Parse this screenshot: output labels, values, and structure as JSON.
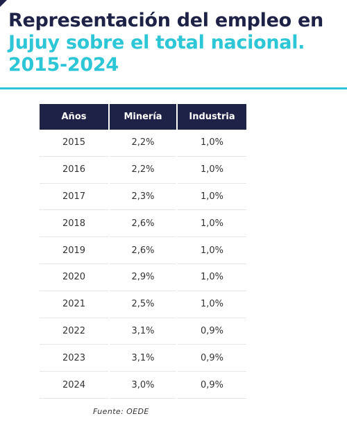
{
  "title": {
    "line1": "Representación del empleo en",
    "line2": "Jujuy sobre el total nacional.",
    "line3": "2015-2024"
  },
  "table": {
    "headers": [
      "Años",
      "Minería",
      "Industria"
    ],
    "rows": [
      [
        "2015",
        "2,2%",
        "1,0%"
      ],
      [
        "2016",
        "2,2%",
        "1,0%"
      ],
      [
        "2017",
        "2,3%",
        "1,0%"
      ],
      [
        "2018",
        "2,6%",
        "1,0%"
      ],
      [
        "2019",
        "2,6%",
        "1,0%"
      ],
      [
        "2020",
        "2,9%",
        "1,0%"
      ],
      [
        "2021",
        "2,5%",
        "1,0%"
      ],
      [
        "2022",
        "3,1%",
        "0,9%"
      ],
      [
        "2023",
        "3,1%",
        "0,9%"
      ],
      [
        "2024",
        "3,0%",
        "0,9%"
      ]
    ]
  },
  "source": "Fuente:  OEDE",
  "colors": {
    "navy": "#1e2247",
    "cyan": "#2cc6d6"
  }
}
